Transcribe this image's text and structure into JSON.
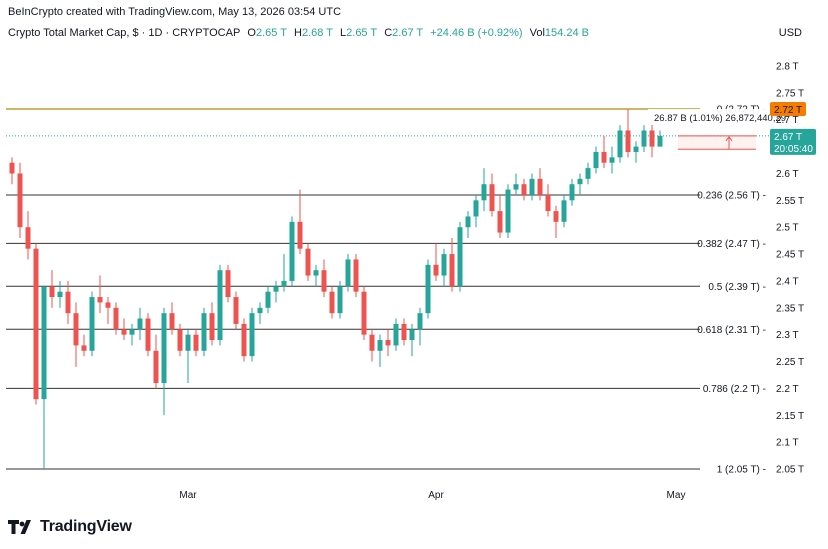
{
  "header": {
    "credit": "BeInCrypto created with TradingView.com, May 13, 2026 03:54 UTC",
    "symbol": "Crypto Total Market Cap, $ · 1D · CRYPTOCAP",
    "open_label": "O",
    "open": "2.65 T",
    "high_label": "H",
    "high": "2.68 T",
    "low_label": "L",
    "low": "2.65 T",
    "close_label": "C",
    "close": "2.67 T",
    "change": "+24.46 B (+0.92%)",
    "vol_label": "Vol",
    "vol": "154.24 B",
    "currency": "USD"
  },
  "branding": {
    "name": "TradingView",
    "icon": "tradingview-logo-icon"
  },
  "colors": {
    "up": "#26a69a",
    "down": "#ef5350",
    "fib_top": "#b8860b",
    "price_tag": "#26a69a",
    "high_tag": "#f57c00"
  },
  "chart_data": {
    "type": "candlestick",
    "y_axis": {
      "min": 2.05,
      "max": 2.8,
      "unit": "T",
      "ticks": [
        "2.8 T",
        "2.75 T",
        "2.7 T",
        "2.65 T",
        "2.6 T",
        "2.55 T",
        "2.5 T",
        "2.45 T",
        "2.4 T",
        "2.35 T",
        "2.3 T",
        "2.25 T",
        "2.2 T",
        "2.15 T",
        "2.1 T",
        "2.05 T"
      ]
    },
    "x_axis": {
      "labels": [
        {
          "label": "Mar",
          "index": 22
        },
        {
          "label": "Apr",
          "index": 53
        },
        {
          "label": "May",
          "index": 83
        }
      ]
    },
    "fib_levels": [
      {
        "label": "0 (2.72 T)",
        "value": 2.72
      },
      {
        "label": "0.236 (2.56 T)",
        "value": 2.56
      },
      {
        "label": "0.382 (2.47 T)",
        "value": 2.47
      },
      {
        "label": "0.5 (2.39 T)",
        "value": 2.39
      },
      {
        "label": "0.618 (2.31 T)",
        "value": 2.31
      },
      {
        "label": "0.786 (2.2 T)",
        "value": 2.2
      },
      {
        "label": "1 (2.05 T)",
        "value": 2.05
      }
    ],
    "current_price": {
      "value": 2.67,
      "label": "2.67 T",
      "countdown": "20:05:40"
    },
    "high_tag": {
      "value": 2.72,
      "label": "2.72 T"
    },
    "measure": {
      "label": "26.87 B (1.01%) 26,872,440,29",
      "from": 2.645,
      "to": 2.67
    },
    "candles": [
      [
        2.62,
        2.63,
        2.58,
        2.6
      ],
      [
        2.6,
        2.62,
        2.48,
        2.5
      ],
      [
        2.5,
        2.53,
        2.44,
        2.46
      ],
      [
        2.46,
        2.47,
        2.17,
        2.18
      ],
      [
        2.18,
        2.39,
        2.05,
        2.39
      ],
      [
        2.39,
        2.42,
        2.35,
        2.37
      ],
      [
        2.37,
        2.4,
        2.35,
        2.38
      ],
      [
        2.38,
        2.4,
        2.32,
        2.34
      ],
      [
        2.34,
        2.36,
        2.24,
        2.28
      ],
      [
        2.28,
        2.3,
        2.26,
        2.27
      ],
      [
        2.27,
        2.38,
        2.26,
        2.37
      ],
      [
        2.37,
        2.41,
        2.34,
        2.36
      ],
      [
        2.36,
        2.37,
        2.32,
        2.35
      ],
      [
        2.35,
        2.36,
        2.3,
        2.31
      ],
      [
        2.31,
        2.33,
        2.29,
        2.3
      ],
      [
        2.3,
        2.32,
        2.28,
        2.31
      ],
      [
        2.31,
        2.35,
        2.29,
        2.33
      ],
      [
        2.33,
        2.34,
        2.26,
        2.27
      ],
      [
        2.27,
        2.3,
        2.2,
        2.21
      ],
      [
        2.21,
        2.35,
        2.15,
        2.34
      ],
      [
        2.34,
        2.36,
        2.3,
        2.31
      ],
      [
        2.31,
        2.32,
        2.26,
        2.27
      ],
      [
        2.27,
        2.31,
        2.21,
        2.3
      ],
      [
        2.3,
        2.31,
        2.26,
        2.27
      ],
      [
        2.27,
        2.35,
        2.26,
        2.34
      ],
      [
        2.34,
        2.36,
        2.28,
        2.29
      ],
      [
        2.29,
        2.43,
        2.28,
        2.42
      ],
      [
        2.42,
        2.43,
        2.36,
        2.37
      ],
      [
        2.37,
        2.38,
        2.31,
        2.32
      ],
      [
        2.32,
        2.33,
        2.25,
        2.26
      ],
      [
        2.26,
        2.35,
        2.25,
        2.34
      ],
      [
        2.34,
        2.36,
        2.32,
        2.35
      ],
      [
        2.35,
        2.39,
        2.34,
        2.38
      ],
      [
        2.38,
        2.4,
        2.36,
        2.39
      ],
      [
        2.39,
        2.45,
        2.38,
        2.4
      ],
      [
        2.4,
        2.52,
        2.39,
        2.51
      ],
      [
        2.51,
        2.57,
        2.45,
        2.46
      ],
      [
        2.46,
        2.47,
        2.4,
        2.41
      ],
      [
        2.41,
        2.43,
        2.39,
        2.42
      ],
      [
        2.42,
        2.44,
        2.37,
        2.38
      ],
      [
        2.38,
        2.39,
        2.33,
        2.34
      ],
      [
        2.34,
        2.4,
        2.33,
        2.39
      ],
      [
        2.39,
        2.45,
        2.38,
        2.44
      ],
      [
        2.44,
        2.45,
        2.37,
        2.38
      ],
      [
        2.38,
        2.39,
        2.29,
        2.3
      ],
      [
        2.3,
        2.31,
        2.25,
        2.27
      ],
      [
        2.27,
        2.3,
        2.24,
        2.29
      ],
      [
        2.29,
        2.31,
        2.26,
        2.28
      ],
      [
        2.28,
        2.33,
        2.27,
        2.32
      ],
      [
        2.32,
        2.33,
        2.28,
        2.29
      ],
      [
        2.29,
        2.32,
        2.26,
        2.31
      ],
      [
        2.31,
        2.35,
        2.28,
        2.34
      ],
      [
        2.34,
        2.44,
        2.33,
        2.43
      ],
      [
        2.43,
        2.47,
        2.4,
        2.41
      ],
      [
        2.41,
        2.46,
        2.39,
        2.45
      ],
      [
        2.45,
        2.48,
        2.38,
        2.39
      ],
      [
        2.39,
        2.51,
        2.38,
        2.5
      ],
      [
        2.5,
        2.53,
        2.48,
        2.52
      ],
      [
        2.52,
        2.56,
        2.5,
        2.55
      ],
      [
        2.55,
        2.61,
        2.53,
        2.58
      ],
      [
        2.58,
        2.6,
        2.52,
        2.53
      ],
      [
        2.53,
        2.56,
        2.48,
        2.49
      ],
      [
        2.49,
        2.58,
        2.48,
        2.57
      ],
      [
        2.57,
        2.6,
        2.56,
        2.58
      ],
      [
        2.58,
        2.59,
        2.55,
        2.56
      ],
      [
        2.56,
        2.6,
        2.55,
        2.59
      ],
      [
        2.59,
        2.61,
        2.55,
        2.56
      ],
      [
        2.56,
        2.58,
        2.52,
        2.53
      ],
      [
        2.53,
        2.54,
        2.48,
        2.51
      ],
      [
        2.51,
        2.56,
        2.5,
        2.55
      ],
      [
        2.55,
        2.59,
        2.54,
        2.58
      ],
      [
        2.58,
        2.6,
        2.56,
        2.59
      ],
      [
        2.59,
        2.62,
        2.58,
        2.61
      ],
      [
        2.61,
        2.65,
        2.6,
        2.64
      ],
      [
        2.64,
        2.67,
        2.61,
        2.62
      ],
      [
        2.62,
        2.65,
        2.6,
        2.63
      ],
      [
        2.63,
        2.69,
        2.62,
        2.68
      ],
      [
        2.68,
        2.72,
        2.63,
        2.64
      ],
      [
        2.64,
        2.66,
        2.62,
        2.65
      ],
      [
        2.65,
        2.69,
        2.64,
        2.68
      ],
      [
        2.68,
        2.7,
        2.63,
        2.65
      ],
      [
        2.65,
        2.68,
        2.65,
        2.67
      ]
    ]
  }
}
